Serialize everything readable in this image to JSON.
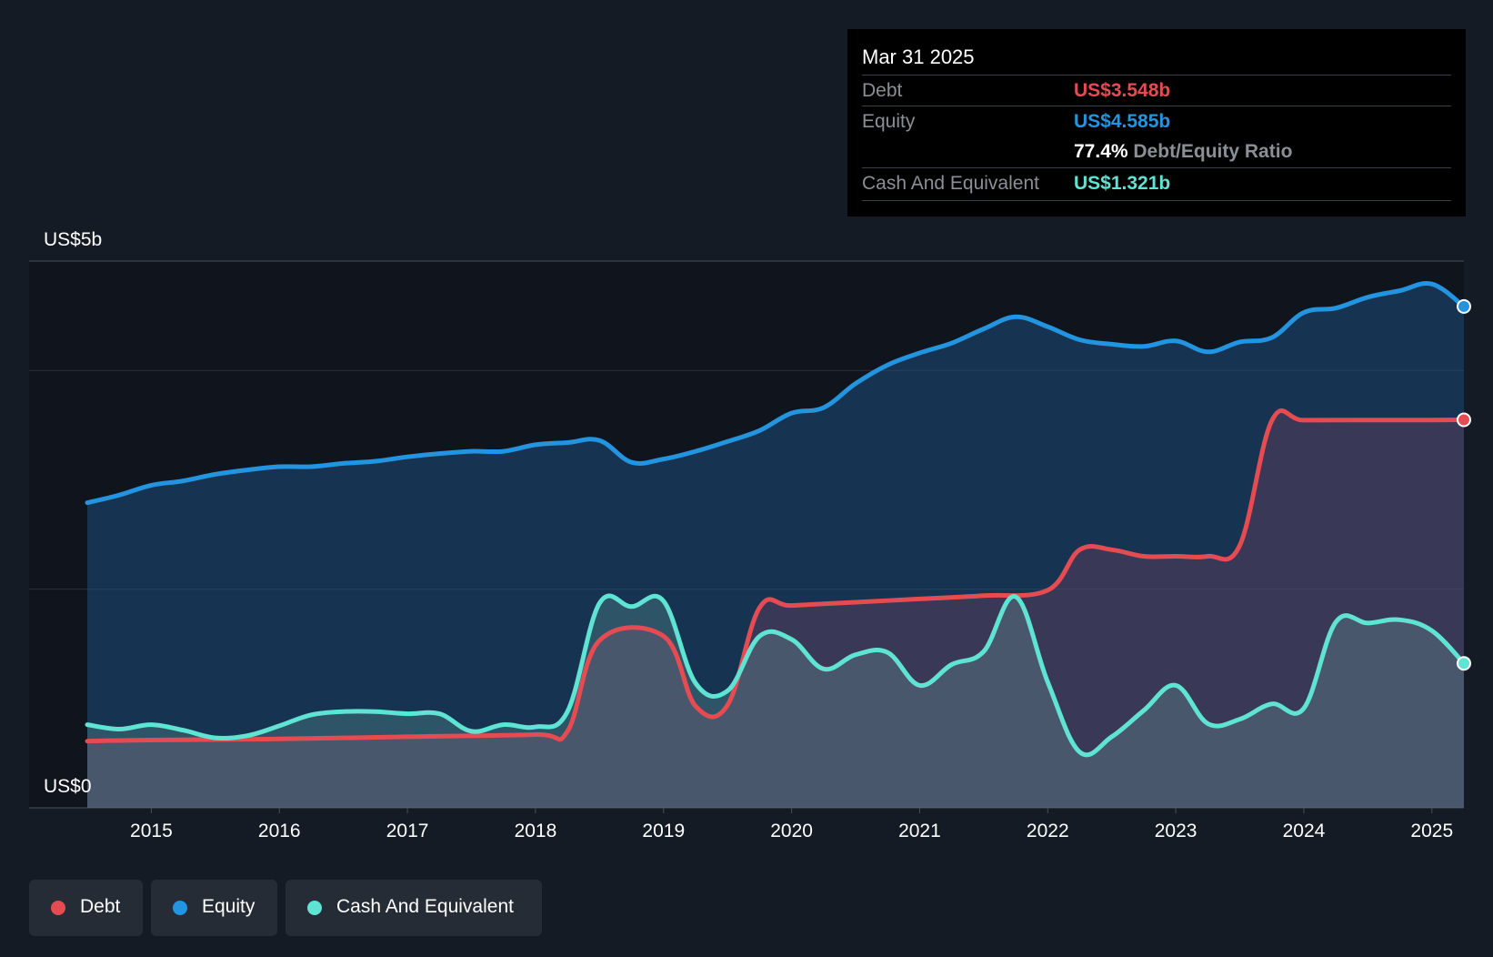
{
  "chart_data": {
    "type": "area",
    "y_top_label": "US$5b",
    "y_bottom_label": "US$0",
    "ylim": [
      0,
      5
    ],
    "unit": "US$b",
    "xlim": [
      2014.5,
      2025.25
    ],
    "x_ticks": [
      "2015",
      "2016",
      "2017",
      "2018",
      "2019",
      "2020",
      "2021",
      "2022",
      "2023",
      "2024",
      "2025"
    ],
    "grid": true,
    "legend_position": "bottom-left",
    "series": [
      {
        "name": "Equity",
        "color": "#2394df",
        "x": [
          2014.5,
          2014.75,
          2015.0,
          2015.25,
          2015.5,
          2015.75,
          2016.0,
          2016.25,
          2016.5,
          2016.75,
          2017.0,
          2017.25,
          2017.5,
          2017.75,
          2018.0,
          2018.25,
          2018.5,
          2018.75,
          2019.0,
          2019.25,
          2019.5,
          2019.75,
          2020.0,
          2020.25,
          2020.5,
          2020.75,
          2021.0,
          2021.25,
          2021.5,
          2021.75,
          2022.0,
          2022.25,
          2022.5,
          2022.75,
          2023.0,
          2023.25,
          2023.5,
          2023.75,
          2024.0,
          2024.25,
          2024.5,
          2024.75,
          2025.0,
          2025.25
        ],
        "values": [
          2.79,
          2.86,
          2.95,
          2.99,
          3.05,
          3.09,
          3.12,
          3.12,
          3.15,
          3.17,
          3.21,
          3.24,
          3.26,
          3.26,
          3.32,
          3.34,
          3.36,
          3.16,
          3.19,
          3.26,
          3.35,
          3.45,
          3.61,
          3.66,
          3.88,
          4.05,
          4.16,
          4.25,
          4.38,
          4.49,
          4.4,
          4.28,
          4.24,
          4.22,
          4.27,
          4.17,
          4.26,
          4.3,
          4.53,
          4.57,
          4.67,
          4.73,
          4.79,
          4.585
        ]
      },
      {
        "name": "Debt",
        "color": "#e64b52",
        "x": [
          2014.5,
          2015.0,
          2016.0,
          2017.0,
          2018.0,
          2018.25,
          2018.5,
          2019.0,
          2019.25,
          2019.5,
          2019.75,
          2020.0,
          2020.5,
          2021.0,
          2021.5,
          2022.0,
          2022.25,
          2022.5,
          2022.75,
          2023.0,
          2023.25,
          2023.5,
          2023.75,
          2024.0,
          2024.5,
          2025.0,
          2025.25
        ],
        "values": [
          0.61,
          0.62,
          0.63,
          0.65,
          0.67,
          0.7,
          1.53,
          1.57,
          0.93,
          0.94,
          1.83,
          1.85,
          1.88,
          1.91,
          1.94,
          1.99,
          2.36,
          2.36,
          2.3,
          2.3,
          2.3,
          2.4,
          3.54,
          3.545,
          3.546,
          3.547,
          3.548
        ]
      },
      {
        "name": "Cash And Equivalent",
        "color": "#5fe3d2",
        "x": [
          2014.5,
          2014.75,
          2015.0,
          2015.25,
          2015.5,
          2015.75,
          2016.0,
          2016.25,
          2016.5,
          2016.75,
          2017.0,
          2017.25,
          2017.5,
          2017.75,
          2018.0,
          2018.25,
          2018.5,
          2018.75,
          2019.0,
          2019.25,
          2019.5,
          2019.75,
          2020.0,
          2020.25,
          2020.5,
          2020.75,
          2021.0,
          2021.25,
          2021.5,
          2021.75,
          2022.0,
          2022.25,
          2022.5,
          2022.75,
          2023.0,
          2023.25,
          2023.5,
          2023.75,
          2024.0,
          2024.25,
          2024.5,
          2024.75,
          2025.0,
          2025.25
        ],
        "values": [
          0.76,
          0.72,
          0.76,
          0.71,
          0.64,
          0.66,
          0.75,
          0.85,
          0.88,
          0.88,
          0.86,
          0.86,
          0.7,
          0.76,
          0.74,
          0.88,
          1.87,
          1.84,
          1.89,
          1.14,
          1.07,
          1.57,
          1.54,
          1.27,
          1.4,
          1.42,
          1.12,
          1.31,
          1.43,
          1.93,
          1.15,
          0.51,
          0.65,
          0.89,
          1.12,
          0.77,
          0.81,
          0.95,
          0.91,
          1.7,
          1.69,
          1.72,
          1.62,
          1.321
        ]
      }
    ],
    "tooltip": {
      "date": "Mar 31 2025",
      "debt_label": "Debt",
      "debt_value": "US$3.548b",
      "equity_label": "Equity",
      "equity_value": "US$4.585b",
      "ratio_value": "77.4%",
      "ratio_label": "Debt/Equity Ratio",
      "cash_label": "Cash And Equivalent",
      "cash_value": "US$1.321b"
    },
    "legend": [
      {
        "name": "Debt",
        "color": "#e64b52"
      },
      {
        "name": "Equity",
        "color": "#2394df"
      },
      {
        "name": "Cash And Equivalent",
        "color": "#5fe3d2"
      }
    ]
  }
}
